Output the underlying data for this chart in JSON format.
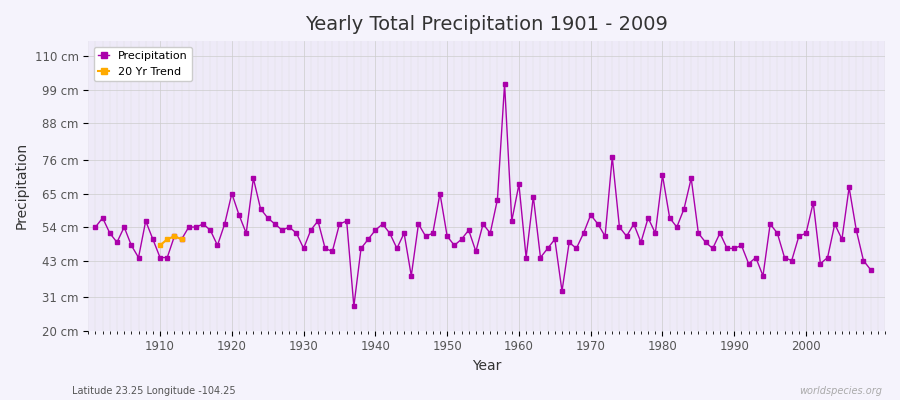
{
  "title": "Yearly Total Precipitation 1901 - 2009",
  "xlabel": "Year",
  "ylabel": "Precipitation",
  "subtitle": "Latitude 23.25 Longitude -104.25",
  "watermark": "worldspecies.org",
  "line_color": "#aa00aa",
  "trend_color": "#ffaa00",
  "bg_color": "#f0eef8",
  "grid_color": "#dddddd",
  "ylim": [
    20,
    115
  ],
  "yticks": [
    20,
    31,
    43,
    54,
    65,
    76,
    88,
    99,
    110
  ],
  "ytick_labels": [
    "20 cm",
    "31 cm",
    "43 cm",
    "54 cm",
    "65 cm",
    "76 cm",
    "88 cm",
    "99 cm",
    "110 cm"
  ],
  "years": [
    1901,
    1902,
    1903,
    1904,
    1905,
    1906,
    1907,
    1908,
    1909,
    1910,
    1911,
    1912,
    1913,
    1914,
    1915,
    1916,
    1917,
    1918,
    1919,
    1920,
    1921,
    1922,
    1923,
    1924,
    1925,
    1926,
    1927,
    1928,
    1929,
    1930,
    1931,
    1932,
    1933,
    1934,
    1935,
    1936,
    1937,
    1938,
    1939,
    1940,
    1941,
    1942,
    1943,
    1944,
    1945,
    1946,
    1947,
    1948,
    1949,
    1950,
    1951,
    1952,
    1953,
    1954,
    1955,
    1956,
    1957,
    1958,
    1959,
    1960,
    1961,
    1962,
    1963,
    1964,
    1965,
    1966,
    1967,
    1968,
    1969,
    1970,
    1971,
    1972,
    1973,
    1974,
    1975,
    1976,
    1977,
    1978,
    1979,
    1980,
    1981,
    1982,
    1983,
    1984,
    1985,
    1986,
    1987,
    1988,
    1989,
    1990,
    1991,
    1992,
    1993,
    1994,
    1995,
    1996,
    1997,
    1998,
    1999,
    2000,
    2001,
    2002,
    2003,
    2004,
    2005,
    2006,
    2007,
    2008,
    2009
  ],
  "precip": [
    54,
    57,
    52,
    49,
    54,
    48,
    44,
    56,
    50,
    44,
    44,
    51,
    50,
    54,
    54,
    55,
    53,
    48,
    55,
    65,
    58,
    52,
    70,
    60,
    57,
    55,
    53,
    54,
    52,
    47,
    53,
    56,
    47,
    46,
    55,
    56,
    28,
    47,
    50,
    53,
    55,
    52,
    47,
    52,
    38,
    55,
    51,
    52,
    65,
    51,
    48,
    50,
    53,
    46,
    55,
    52,
    63,
    101,
    56,
    68,
    44,
    64,
    44,
    47,
    50,
    33,
    49,
    47,
    52,
    58,
    55,
    51,
    77,
    54,
    51,
    55,
    49,
    57,
    52,
    71,
    57,
    54,
    60,
    70,
    52,
    49,
    47,
    52,
    47,
    47,
    48,
    42,
    44,
    38,
    55,
    52,
    44,
    43,
    51,
    52,
    62,
    42,
    44,
    55,
    50,
    67,
    53,
    43,
    40
  ],
  "trend_years": [
    1910,
    1911,
    1912,
    1913
  ],
  "trend_values": [
    48,
    50,
    51,
    50
  ]
}
